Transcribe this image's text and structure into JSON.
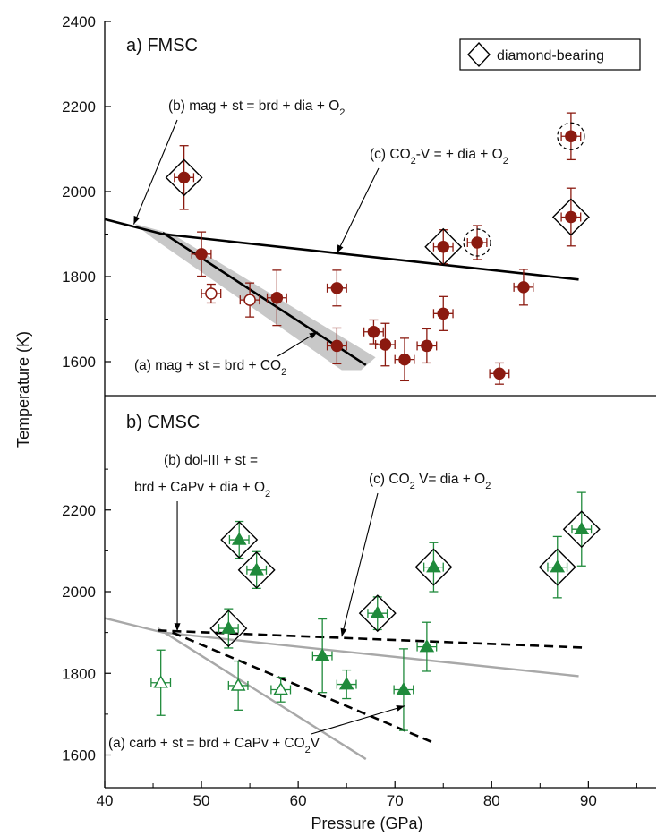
{
  "xlabel": "Pressure (GPa)",
  "ylabel": "Temperature (K)",
  "x_ticks": [
    "40",
    "50",
    "60",
    "70",
    "80",
    "90"
  ],
  "legend": {
    "label": "diamond-bearing"
  },
  "colors": {
    "fmsc": "#8b1a10",
    "cmsc": "#1f8a3b",
    "boundary": "#000000",
    "cmsc_lines": "#a8a8a8",
    "band": "#c8c8c8"
  },
  "chart_data": [
    {
      "type": "scatter",
      "panel_label": "a) FMSC",
      "xlim": [
        40,
        97
      ],
      "ylim": [
        1520,
        2400
      ],
      "y_ticks": [
        "1600",
        "1800",
        "2000",
        "2200",
        "2400"
      ],
      "points": [
        {
          "x": 48.2,
          "y": 2033,
          "xerr": 1,
          "yerr": 75,
          "filled": true,
          "diamond": true
        },
        {
          "x": 50.0,
          "y": 1853,
          "xerr": 1,
          "yerr": 52,
          "filled": true
        },
        {
          "x": 51.0,
          "y": 1760,
          "xerr": 1,
          "yerr": 22,
          "filled": false
        },
        {
          "x": 55.0,
          "y": 1745,
          "xerr": 1,
          "yerr": 40,
          "filled": false
        },
        {
          "x": 57.8,
          "y": 1750,
          "xerr": 1,
          "yerr": 65,
          "filled": true
        },
        {
          "x": 64.0,
          "y": 1773,
          "xerr": 1,
          "yerr": 42,
          "filled": true
        },
        {
          "x": 64.0,
          "y": 1637,
          "xerr": 1,
          "yerr": 42,
          "filled": true
        },
        {
          "x": 67.8,
          "y": 1670,
          "xerr": 1,
          "yerr": 28,
          "filled": true
        },
        {
          "x": 69.0,
          "y": 1640,
          "xerr": 1,
          "yerr": 50,
          "filled": true
        },
        {
          "x": 71.0,
          "y": 1605,
          "xerr": 1,
          "yerr": 50,
          "filled": true
        },
        {
          "x": 73.3,
          "y": 1637,
          "xerr": 1,
          "yerr": 40,
          "filled": true
        },
        {
          "x": 75.0,
          "y": 1713,
          "xerr": 1,
          "yerr": 40,
          "filled": true
        },
        {
          "x": 75.0,
          "y": 1870,
          "xerr": 1,
          "yerr": 40,
          "filled": true,
          "diamond": true
        },
        {
          "x": 78.5,
          "y": 1880,
          "xerr": 1,
          "yerr": 40,
          "filled": true,
          "dashed_circle": true
        },
        {
          "x": 80.8,
          "y": 1572,
          "xerr": 1,
          "yerr": 25,
          "filled": true
        },
        {
          "x": 83.3,
          "y": 1775,
          "xerr": 1,
          "yerr": 42,
          "filled": true
        },
        {
          "x": 88.2,
          "y": 2130,
          "xerr": 1,
          "yerr": 55,
          "filled": true,
          "dashed_circle": true
        },
        {
          "x": 88.2,
          "y": 1940,
          "xerr": 1,
          "yerr": 68,
          "filled": true,
          "diamond": true
        }
      ],
      "lines": [
        {
          "points": [
            [
              40,
              1935
            ],
            [
              46,
              1900
            ],
            [
              89,
              1793
            ]
          ],
          "style": "solid"
        },
        {
          "points": [
            [
              46,
              1903
            ],
            [
              67,
              1592
            ]
          ],
          "style": "solid"
        }
      ],
      "band": [
        [
          43,
          1925
        ],
        [
          47,
          1900
        ],
        [
          68,
          1610
        ],
        [
          66.5,
          1580
        ],
        [
          64.5,
          1580
        ],
        [
          45,
          1890
        ]
      ],
      "annotations": [
        {
          "parts": [
            [
              "(b) mag + st = brd + dia + O",
              ""
            ],
            [
              "2",
              "sub"
            ]
          ],
          "arrow_to": [
            43,
            1923
          ]
        },
        {
          "parts": [
            [
              "(c) CO",
              ""
            ],
            [
              "2",
              "sub"
            ],
            [
              "-V = + dia + O",
              ""
            ],
            [
              "2",
              "sub"
            ]
          ],
          "arrow_to": [
            64,
            1855
          ]
        },
        {
          "parts": [
            [
              "(a) mag + st = brd + CO",
              ""
            ],
            [
              "2",
              "sub"
            ]
          ],
          "arrow_to": [
            62,
            1670
          ]
        }
      ]
    },
    {
      "type": "scatter",
      "panel_label": "b) CMSC",
      "xlim": [
        40,
        97
      ],
      "ylim": [
        1520,
        2480
      ],
      "y_ticks": [
        "1600",
        "1800",
        "2000",
        "2200"
      ],
      "points": [
        {
          "x": 45.8,
          "y": 1777,
          "xerr": 1,
          "yerr": 80,
          "filled": false
        },
        {
          "x": 52.8,
          "y": 1910,
          "xerr": 1,
          "yerr": 48,
          "filled": true,
          "diamond": true
        },
        {
          "x": 53.8,
          "y": 1770,
          "xerr": 1,
          "yerr": 60,
          "filled": false
        },
        {
          "x": 53.9,
          "y": 2127,
          "xerr": 1,
          "yerr": 45,
          "filled": true,
          "diamond": true
        },
        {
          "x": 55.7,
          "y": 2053,
          "xerr": 1,
          "yerr": 45,
          "filled": true,
          "diamond": true
        },
        {
          "x": 58.2,
          "y": 1760,
          "xerr": 1,
          "yerr": 30,
          "filled": false
        },
        {
          "x": 62.5,
          "y": 1843,
          "xerr": 1,
          "yerr": 90,
          "filled": true
        },
        {
          "x": 65.0,
          "y": 1773,
          "xerr": 1,
          "yerr": 35,
          "filled": true
        },
        {
          "x": 68.2,
          "y": 1947,
          "xerr": 1,
          "yerr": 40,
          "filled": true,
          "diamond": true
        },
        {
          "x": 70.9,
          "y": 1760,
          "xerr": 1,
          "yerr": 100,
          "filled": true
        },
        {
          "x": 73.3,
          "y": 1865,
          "xerr": 1,
          "yerr": 60,
          "filled": true
        },
        {
          "x": 74.0,
          "y": 2060,
          "xerr": 1,
          "yerr": 60,
          "filled": true,
          "diamond": true
        },
        {
          "x": 86.8,
          "y": 2060,
          "xerr": 1,
          "yerr": 75,
          "filled": true,
          "diamond": true
        },
        {
          "x": 89.3,
          "y": 2153,
          "xerr": 1,
          "yerr": 90,
          "filled": true,
          "diamond": true
        }
      ],
      "lines": [
        {
          "points": [
            [
              40,
              1935
            ],
            [
              46,
              1900
            ],
            [
              89,
              1793
            ]
          ],
          "style": "gray"
        },
        {
          "points": [
            [
              45.5,
              1910
            ],
            [
              67,
              1590
            ]
          ],
          "style": "gray"
        },
        {
          "points": [
            [
              45.5,
              1905
            ],
            [
              89.5,
              1863
            ]
          ],
          "style": "dashed"
        },
        {
          "points": [
            [
              47,
              1900
            ],
            [
              74,
              1630
            ]
          ],
          "style": "dashed"
        }
      ],
      "annotations": [
        {
          "parts": [
            [
              "(b) dol-III + st =",
              ""
            ]
          ],
          "arrow_to": null
        },
        {
          "parts": [
            [
              "brd + CaPv + dia + O",
              ""
            ],
            [
              "2",
              "sub"
            ]
          ],
          "arrow_to": [
            47.5,
            1903
          ]
        },
        {
          "parts": [
            [
              "(c) CO",
              ""
            ],
            [
              "2",
              "sub"
            ],
            [
              " V=  dia + O",
              ""
            ],
            [
              "2",
              "sub"
            ]
          ],
          "arrow_to": [
            64.5,
            1890
          ]
        },
        {
          "parts": [
            [
              "(a) carb + st = brd + CaPv + CO",
              ""
            ],
            [
              "2",
              "sub"
            ],
            [
              "V",
              ""
            ]
          ],
          "arrow_to": [
            71,
            1720
          ]
        }
      ]
    }
  ]
}
